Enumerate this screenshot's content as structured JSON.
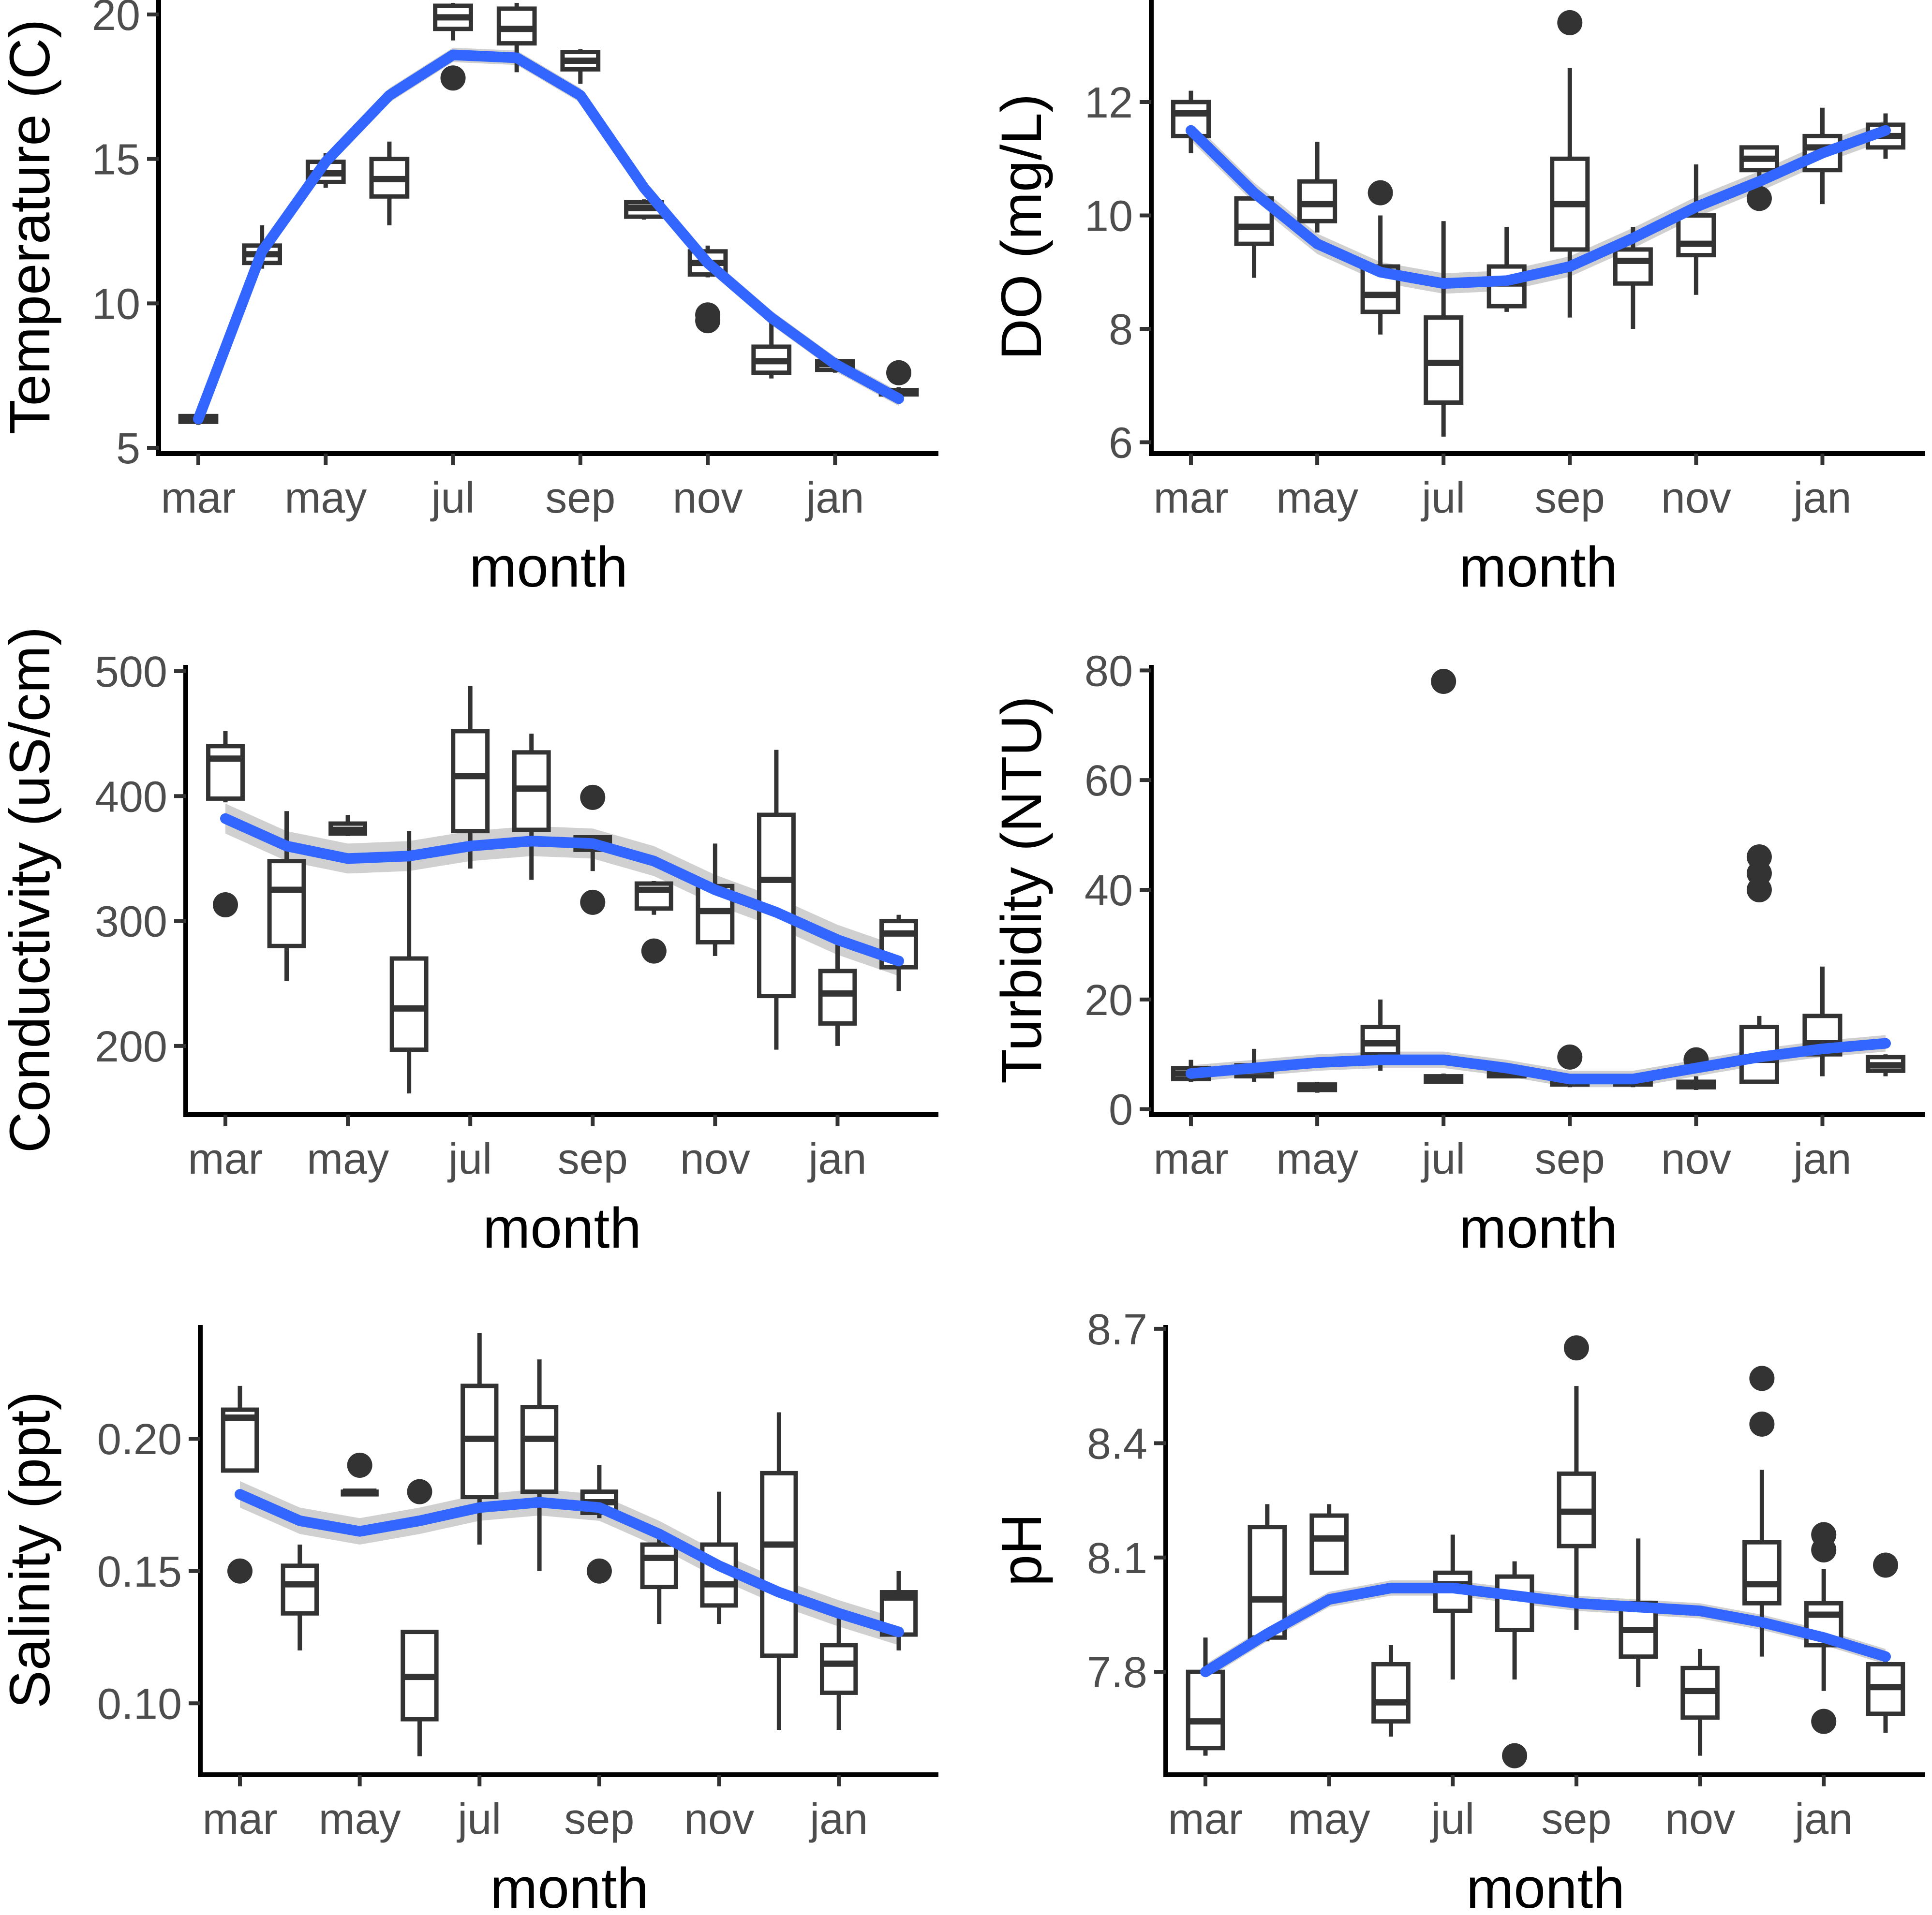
{
  "colors": {
    "smooth": "#3366FF",
    "band": "#C8C8C8",
    "box": "#333333",
    "axis": "#000000",
    "ticktext": "#4D4D4D"
  },
  "chart_data": [
    {
      "id": "temperature",
      "type": "box",
      "title": "",
      "xlabel": "month",
      "ylabel": "Temperature (C)",
      "x_ticks": [
        "mar",
        "may",
        "jul",
        "sep",
        "nov",
        "jan"
      ],
      "ylim": [
        4.8,
        20.5
      ],
      "yticks": [
        "5",
        "10",
        "15",
        "20"
      ],
      "ytick_values": [
        5,
        10,
        15,
        20
      ],
      "boxes": [
        {
          "month": "mar",
          "min": 5.8,
          "q1": 5.9,
          "median": 6.0,
          "q3": 6.1,
          "max": 6.2,
          "outliers": []
        },
        {
          "month": "apr",
          "min": 11.2,
          "q1": 11.4,
          "median": 11.7,
          "q3": 12.0,
          "max": 12.7,
          "outliers": []
        },
        {
          "month": "may",
          "min": 14.0,
          "q1": 14.2,
          "median": 14.5,
          "q3": 14.9,
          "max": 15.2,
          "outliers": []
        },
        {
          "month": "jun",
          "min": 12.7,
          "q1": 13.7,
          "median": 14.3,
          "q3": 15.0,
          "max": 15.6,
          "outliers": []
        },
        {
          "month": "jul",
          "min": 19.1,
          "q1": 19.5,
          "median": 19.9,
          "q3": 20.3,
          "max": 20.4,
          "outliers": [
            17.8
          ]
        },
        {
          "month": "aug",
          "min": 18.0,
          "q1": 19.0,
          "median": 19.5,
          "q3": 20.2,
          "max": 20.4,
          "outliers": []
        },
        {
          "month": "sep",
          "min": 17.6,
          "q1": 18.1,
          "median": 18.4,
          "q3": 18.7,
          "max": 18.8,
          "outliers": []
        },
        {
          "month": "oct",
          "min": 12.9,
          "q1": 13.0,
          "median": 13.3,
          "q3": 13.5,
          "max": 13.6,
          "outliers": []
        },
        {
          "month": "nov",
          "min": 10.9,
          "q1": 11.0,
          "median": 11.4,
          "q3": 11.8,
          "max": 12.0,
          "outliers": [
            9.6,
            9.4
          ]
        },
        {
          "month": "dec",
          "min": 7.4,
          "q1": 7.6,
          "median": 8.0,
          "q3": 8.5,
          "max": 9.6,
          "outliers": []
        },
        {
          "month": "jan",
          "min": 7.6,
          "q1": 7.7,
          "median": 7.9,
          "q3": 8.0,
          "max": 8.1,
          "outliers": []
        },
        {
          "month": "feb",
          "min": 6.8,
          "q1": 6.85,
          "median": 6.9,
          "q3": 7.0,
          "max": 7.1,
          "outliers": [
            7.6
          ]
        }
      ],
      "smooth": [
        6.0,
        11.8,
        14.9,
        17.2,
        18.6,
        18.5,
        17.2,
        14.0,
        11.4,
        9.5,
        7.9,
        6.7
      ],
      "band": 0.25
    },
    {
      "id": "do",
      "type": "box",
      "title": "",
      "xlabel": "month",
      "ylabel": "DO (mg/L)",
      "x_ticks": [
        "mar",
        "may",
        "jul",
        "sep",
        "nov",
        "jan"
      ],
      "ylim": [
        5.8,
        13.8
      ],
      "yticks": [
        "6",
        "8",
        "10",
        "12"
      ],
      "ytick_values": [
        6,
        8,
        10,
        12
      ],
      "boxes": [
        {
          "month": "mar",
          "min": 11.1,
          "q1": 11.4,
          "median": 11.8,
          "q3": 12.0,
          "max": 12.2,
          "outliers": []
        },
        {
          "month": "apr",
          "min": 8.9,
          "q1": 9.5,
          "median": 9.8,
          "q3": 10.3,
          "max": 10.5,
          "outliers": []
        },
        {
          "month": "may",
          "min": 9.7,
          "q1": 9.9,
          "median": 10.2,
          "q3": 10.6,
          "max": 11.3,
          "outliers": []
        },
        {
          "month": "jun",
          "min": 7.9,
          "q1": 8.3,
          "median": 8.6,
          "q3": 9.1,
          "max": 10.0,
          "outliers": [
            10.4
          ]
        },
        {
          "month": "jul",
          "min": 6.1,
          "q1": 6.7,
          "median": 7.4,
          "q3": 8.2,
          "max": 9.9,
          "outliers": []
        },
        {
          "month": "aug",
          "min": 8.3,
          "q1": 8.4,
          "median": 8.8,
          "q3": 9.1,
          "max": 9.8,
          "outliers": []
        },
        {
          "month": "sep",
          "min": 8.2,
          "q1": 9.4,
          "median": 10.2,
          "q3": 11.0,
          "max": 12.6,
          "outliers": [
            13.4
          ]
        },
        {
          "month": "oct",
          "min": 8.0,
          "q1": 8.8,
          "median": 9.2,
          "q3": 9.4,
          "max": 9.8,
          "outliers": []
        },
        {
          "month": "nov",
          "min": 8.6,
          "q1": 9.3,
          "median": 9.5,
          "q3": 10.0,
          "max": 10.9,
          "outliers": []
        },
        {
          "month": "dec",
          "min": 10.6,
          "q1": 10.8,
          "median": 11.0,
          "q3": 11.2,
          "max": 11.2,
          "outliers": [
            10.3
          ]
        },
        {
          "month": "jan",
          "min": 10.2,
          "q1": 10.8,
          "median": 11.2,
          "q3": 11.4,
          "max": 11.9,
          "outliers": []
        },
        {
          "month": "feb",
          "min": 11.0,
          "q1": 11.2,
          "median": 11.4,
          "q3": 11.6,
          "max": 11.8,
          "outliers": []
        }
      ],
      "smooth": [
        11.5,
        10.4,
        9.5,
        9.0,
        8.8,
        8.85,
        9.1,
        9.6,
        10.15,
        10.6,
        11.1,
        11.5
      ],
      "band": 0.18
    },
    {
      "id": "conductivity",
      "type": "box",
      "title": "",
      "xlabel": "month",
      "ylabel": "Conductivity (uS/cm)",
      "x_ticks": [
        "mar",
        "may",
        "jul",
        "sep",
        "nov",
        "jan"
      ],
      "ylim": [
        145,
        505
      ],
      "yticks": [
        "200",
        "300",
        "400",
        "500"
      ],
      "ytick_values": [
        200,
        300,
        400,
        500
      ],
      "boxes": [
        {
          "month": "mar",
          "min": 395,
          "q1": 398,
          "median": 430,
          "q3": 440,
          "max": 452,
          "outliers": [
            313
          ]
        },
        {
          "month": "apr",
          "min": 252,
          "q1": 280,
          "median": 325,
          "q3": 348,
          "max": 388,
          "outliers": []
        },
        {
          "month": "may",
          "min": 368,
          "q1": 370,
          "median": 373,
          "q3": 378,
          "max": 385,
          "outliers": []
        },
        {
          "month": "jun",
          "min": 162,
          "q1": 197,
          "median": 230,
          "q3": 270,
          "max": 372,
          "outliers": []
        },
        {
          "month": "jul",
          "min": 342,
          "q1": 372,
          "median": 416,
          "q3": 452,
          "max": 488,
          "outliers": []
        },
        {
          "month": "aug",
          "min": 333,
          "q1": 373,
          "median": 406,
          "q3": 435,
          "max": 450,
          "outliers": []
        },
        {
          "month": "sep",
          "min": 340,
          "q1": 357,
          "median": 364,
          "q3": 367,
          "max": 368,
          "outliers": [
            399,
            315
          ]
        },
        {
          "month": "oct",
          "min": 305,
          "q1": 310,
          "median": 325,
          "q3": 330,
          "max": 332,
          "outliers": [
            276
          ]
        },
        {
          "month": "nov",
          "min": 272,
          "q1": 283,
          "median": 308,
          "q3": 328,
          "max": 362,
          "outliers": []
        },
        {
          "month": "dec",
          "min": 197,
          "q1": 240,
          "median": 333,
          "q3": 385,
          "max": 437,
          "outliers": []
        },
        {
          "month": "jan",
          "min": 200,
          "q1": 218,
          "median": 242,
          "q3": 260,
          "max": 283,
          "outliers": []
        },
        {
          "month": "feb",
          "min": 244,
          "q1": 263,
          "median": 290,
          "q3": 300,
          "max": 305,
          "outliers": []
        }
      ],
      "smooth": [
        382,
        360,
        350,
        352,
        360,
        364,
        362,
        348,
        325,
        307,
        285,
        268
      ],
      "band": 12
    },
    {
      "id": "turbidity",
      "type": "box",
      "title": "",
      "xlabel": "month",
      "ylabel": "Turbidity (NTU)",
      "x_ticks": [
        "mar",
        "may",
        "jul",
        "sep",
        "nov",
        "jan"
      ],
      "ylim": [
        -1,
        81
      ],
      "yticks": [
        "0",
        "20",
        "40",
        "60",
        "80"
      ],
      "ytick_values": [
        0,
        20,
        40,
        60,
        80
      ],
      "boxes": [
        {
          "month": "mar",
          "min": 5,
          "q1": 5.5,
          "median": 6.5,
          "q3": 7.5,
          "max": 9,
          "outliers": []
        },
        {
          "month": "apr",
          "min": 5,
          "q1": 6,
          "median": 7,
          "q3": 8,
          "max": 11,
          "outliers": []
        },
        {
          "month": "may",
          "min": 3,
          "q1": 3.5,
          "median": 4,
          "q3": 4.5,
          "max": 5,
          "outliers": []
        },
        {
          "month": "jun",
          "min": 7,
          "q1": 10,
          "median": 12,
          "q3": 15,
          "max": 20,
          "outliers": []
        },
        {
          "month": "jul",
          "min": 5,
          "q1": 5,
          "median": 5.5,
          "q3": 6,
          "max": 6.5,
          "outliers": [
            78
          ]
        },
        {
          "month": "aug",
          "min": 6,
          "q1": 6,
          "median": 6.5,
          "q3": 7,
          "max": 7,
          "outliers": []
        },
        {
          "month": "sep",
          "min": 4,
          "q1": 4.5,
          "median": 5,
          "q3": 5.5,
          "max": 6,
          "outliers": [
            9.5
          ]
        },
        {
          "month": "oct",
          "min": 4,
          "q1": 4.5,
          "median": 5,
          "q3": 5.5,
          "max": 6,
          "outliers": []
        },
        {
          "month": "nov",
          "min": 3.5,
          "q1": 4,
          "median": 4.5,
          "q3": 5,
          "max": 6,
          "outliers": [
            9
          ]
        },
        {
          "month": "dec",
          "min": 5,
          "q1": 5,
          "median": 9,
          "q3": 15,
          "max": 17,
          "outliers": [
            46,
            43,
            40
          ]
        },
        {
          "month": "jan",
          "min": 6,
          "q1": 10,
          "median": 12,
          "q3": 17,
          "max": 26,
          "outliers": []
        },
        {
          "month": "feb",
          "min": 6,
          "q1": 7,
          "median": 8,
          "q3": 9.5,
          "max": 10,
          "outliers": []
        }
      ],
      "smooth": [
        6.5,
        7.5,
        8.5,
        9.0,
        9.0,
        7.5,
        5.5,
        5.5,
        7.5,
        9.5,
        11,
        12
      ],
      "band": 1.5
    },
    {
      "id": "salinity",
      "type": "box",
      "title": "",
      "xlabel": "month",
      "ylabel": "Salinity (ppt)",
      "x_ticks": [
        "mar",
        "may",
        "jul",
        "sep",
        "nov",
        "jan"
      ],
      "ylim": [
        0.073,
        0.243
      ],
      "yticks": [
        "0.10",
        "0.15",
        "0.20"
      ],
      "ytick_values": [
        0.1,
        0.15,
        0.2
      ],
      "boxes": [
        {
          "month": "mar",
          "min": 0.188,
          "q1": 0.188,
          "median": 0.208,
          "q3": 0.211,
          "max": 0.22,
          "outliers": [
            0.15
          ]
        },
        {
          "month": "apr",
          "min": 0.12,
          "q1": 0.134,
          "median": 0.145,
          "q3": 0.152,
          "max": 0.16,
          "outliers": []
        },
        {
          "month": "may",
          "min": 0.179,
          "q1": 0.179,
          "median": 0.18,
          "q3": 0.18,
          "max": 0.181,
          "outliers": [
            0.19
          ]
        },
        {
          "month": "jun",
          "min": 0.08,
          "q1": 0.094,
          "median": 0.11,
          "q3": 0.127,
          "max": 0.127,
          "outliers": [
            0.18
          ]
        },
        {
          "month": "jul",
          "min": 0.16,
          "q1": 0.178,
          "median": 0.2,
          "q3": 0.22,
          "max": 0.24,
          "outliers": []
        },
        {
          "month": "aug",
          "min": 0.15,
          "q1": 0.18,
          "median": 0.2,
          "q3": 0.212,
          "max": 0.23,
          "outliers": []
        },
        {
          "month": "sep",
          "min": 0.17,
          "q1": 0.172,
          "median": 0.176,
          "q3": 0.18,
          "max": 0.19,
          "outliers": [
            0.15
          ]
        },
        {
          "month": "oct",
          "min": 0.13,
          "q1": 0.144,
          "median": 0.155,
          "q3": 0.16,
          "max": 0.165,
          "outliers": []
        },
        {
          "month": "nov",
          "min": 0.13,
          "q1": 0.137,
          "median": 0.145,
          "q3": 0.16,
          "max": 0.18,
          "outliers": []
        },
        {
          "month": "dec",
          "min": 0.09,
          "q1": 0.118,
          "median": 0.16,
          "q3": 0.187,
          "max": 0.21,
          "outliers": []
        },
        {
          "month": "jan",
          "min": 0.09,
          "q1": 0.104,
          "median": 0.115,
          "q3": 0.122,
          "max": 0.133,
          "outliers": []
        },
        {
          "month": "feb",
          "min": 0.12,
          "q1": 0.126,
          "median": 0.14,
          "q3": 0.142,
          "max": 0.15,
          "outliers": []
        }
      ],
      "smooth": [
        0.179,
        0.169,
        0.165,
        0.169,
        0.174,
        0.176,
        0.174,
        0.164,
        0.152,
        0.142,
        0.134,
        0.127
      ],
      "band": 0.005
    },
    {
      "id": "ph",
      "type": "box",
      "title": "",
      "xlabel": "month",
      "ylabel": "pH",
      "x_ticks": [
        "mar",
        "may",
        "jul",
        "sep",
        "nov",
        "jan"
      ],
      "ylim": [
        7.53,
        8.71
      ],
      "yticks": [
        "7.8",
        "8.1",
        "8.4",
        "8.7"
      ],
      "ytick_values": [
        7.8,
        8.1,
        8.4,
        8.7
      ],
      "boxes": [
        {
          "month": "mar",
          "min": 7.58,
          "q1": 7.6,
          "median": 7.67,
          "q3": 7.8,
          "max": 7.89,
          "outliers": []
        },
        {
          "month": "apr",
          "min": 7.88,
          "q1": 7.89,
          "median": 7.99,
          "q3": 8.18,
          "max": 8.24,
          "outliers": []
        },
        {
          "month": "may",
          "min": 8.06,
          "q1": 8.06,
          "median": 8.15,
          "q3": 8.21,
          "max": 8.24,
          "outliers": []
        },
        {
          "month": "jun",
          "min": 7.63,
          "q1": 7.67,
          "median": 7.72,
          "q3": 7.82,
          "max": 7.87,
          "outliers": []
        },
        {
          "month": "jul",
          "min": 7.78,
          "q1": 7.96,
          "median": 8.03,
          "q3": 8.06,
          "max": 8.16,
          "outliers": []
        },
        {
          "month": "aug",
          "min": 7.78,
          "q1": 7.91,
          "median": 8.0,
          "q3": 8.05,
          "max": 8.09,
          "outliers": [
            7.58
          ]
        },
        {
          "month": "sep",
          "min": 7.91,
          "q1": 8.13,
          "median": 8.22,
          "q3": 8.32,
          "max": 8.55,
          "outliers": [
            8.65
          ]
        },
        {
          "month": "oct",
          "min": 7.76,
          "q1": 7.84,
          "median": 7.91,
          "q3": 7.98,
          "max": 8.15,
          "outliers": []
        },
        {
          "month": "nov",
          "min": 7.58,
          "q1": 7.68,
          "median": 7.75,
          "q3": 7.81,
          "max": 7.86,
          "outliers": []
        },
        {
          "month": "dec",
          "min": 7.84,
          "q1": 7.98,
          "median": 8.03,
          "q3": 8.14,
          "max": 8.33,
          "outliers": [
            8.57,
            8.45
          ]
        },
        {
          "month": "jan",
          "min": 7.75,
          "q1": 7.87,
          "median": 7.95,
          "q3": 7.98,
          "max": 8.07,
          "outliers": [
            8.16,
            8.12,
            7.67
          ]
        },
        {
          "month": "feb",
          "min": 7.64,
          "q1": 7.69,
          "median": 7.76,
          "q3": 7.82,
          "max": 7.84,
          "outliers": [
            8.08
          ]
        }
      ],
      "smooth": [
        7.8,
        7.9,
        7.99,
        8.02,
        8.02,
        8.0,
        7.98,
        7.97,
        7.96,
        7.93,
        7.89,
        7.84
      ],
      "band": 0.02
    }
  ]
}
